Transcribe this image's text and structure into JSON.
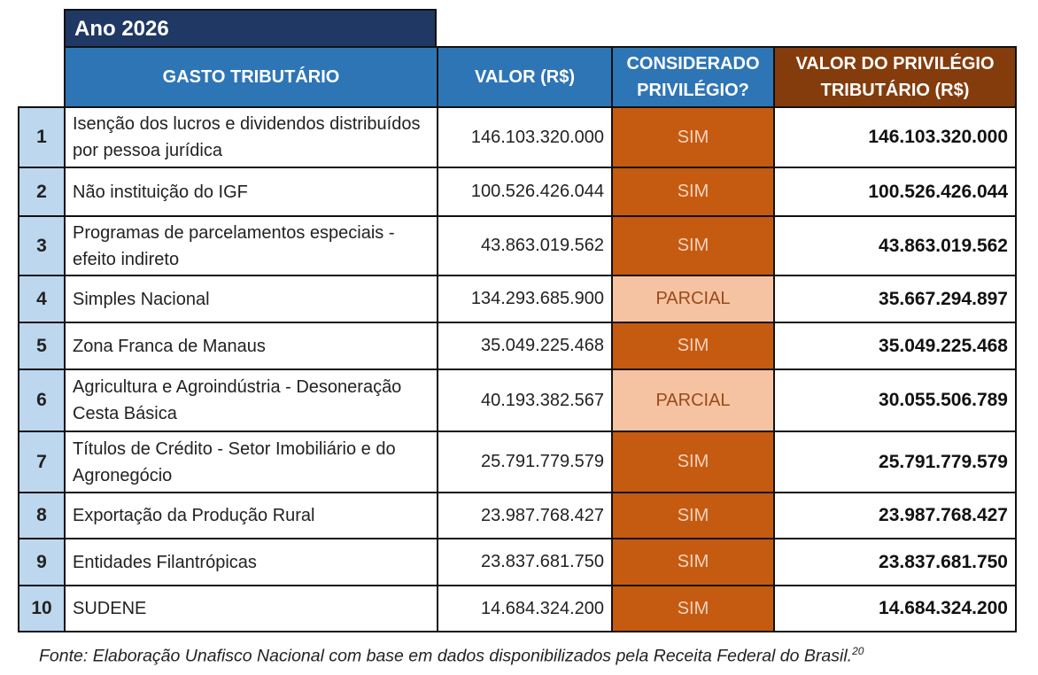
{
  "header": {
    "title": "Ano 2026",
    "columns": [
      "GASTO TRIBUTÁRIO",
      "VALOR (R$)",
      "CONSIDERADO PRIVILÉGIO?",
      "VALOR DO PRIVILÉGIO TRIBUTÁRIO (R$)"
    ]
  },
  "table": {
    "rows": [
      {
        "rank": "1",
        "name": "Isenção dos lucros e dividendos distribuídos por pessoa jurídica",
        "valor": "146.103.320.000",
        "status": "SIM",
        "color": "#c55a11",
        "privilegio": "146.103.320.000"
      },
      {
        "rank": "2",
        "name": "Não instituição do IGF",
        "valor": "100.526.426.044",
        "status": "SIM",
        "color": "#c55a11",
        "privilegio": "100.526.426.044"
      },
      {
        "rank": "3",
        "name": "Programas de parcelamentos especiais - efeito indireto",
        "valor": "43.863.019.562",
        "status": "SIM",
        "color": "#c55a11",
        "privilegio": "43.863.019.562"
      },
      {
        "rank": "4",
        "name": "Simples Nacional",
        "valor": "134.293.685.900",
        "status": "PARCIAL",
        "color": "#f6c3a2",
        "privilegio": "35.667.294.897"
      },
      {
        "rank": "5",
        "name": "Zona Franca de Manaus",
        "valor": "35.049.225.468",
        "status": "SIM",
        "color": "#c55a11",
        "privilegio": "35.049.225.468"
      },
      {
        "rank": "6",
        "name": "Agricultura e Agroindústria - Desoneração Cesta Básica",
        "valor": "40.193.382.567",
        "status": "PARCIAL",
        "color": "#f6c3a2",
        "privilegio": "30.055.506.789"
      },
      {
        "rank": "7",
        "name": "Títulos de Crédito - Setor Imobiliário e do Agronegócio",
        "valor": "25.791.779.579",
        "status": "SIM",
        "color": "#c55a11",
        "privilegio": "25.791.779.579"
      },
      {
        "rank": "8",
        "name": "Exportação da Produção Rural",
        "valor": "23.987.768.427",
        "status": "SIM",
        "color": "#c55a11",
        "privilegio": "23.987.768.427"
      },
      {
        "rank": "9",
        "name": "Entidades Filantrópicas",
        "valor": "23.837.681.750",
        "status": "SIM",
        "color": "#c55a11",
        "privilegio": "23.837.681.750"
      },
      {
        "rank": "10",
        "name": "SUDENE",
        "valor": "14.684.324.200",
        "status": "SIM",
        "color": "#c55a11",
        "privilegio": "14.684.324.200"
      }
    ]
  },
  "footer": {
    "source": "Fonte: Elaboração Unafisco Nacional com base em dados disponibilizados pela Receita Federal do Brasil.",
    "note": "20"
  }
}
